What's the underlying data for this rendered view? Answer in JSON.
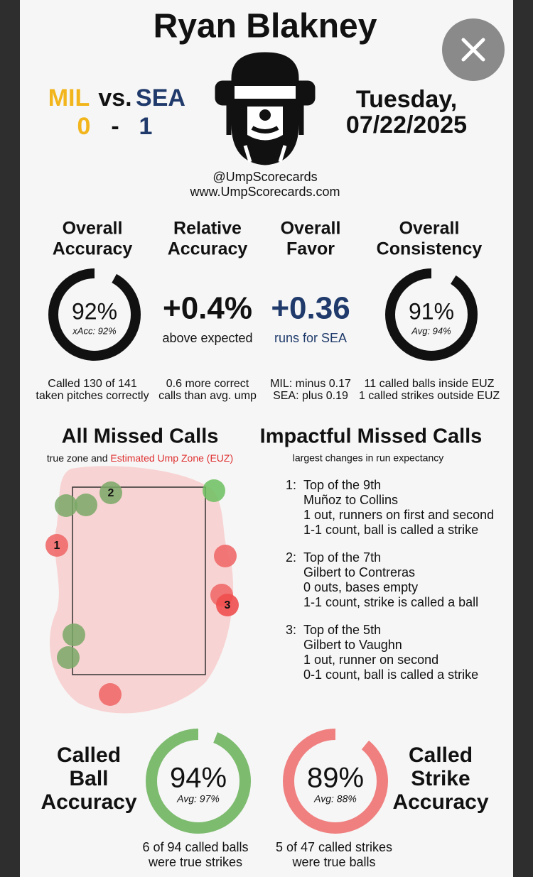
{
  "header": {
    "title": "Ryan Blakney",
    "away_team": "MIL",
    "vs": "vs.",
    "home_team": "SEA",
    "away_score": "0",
    "dash": "-",
    "home_score": "1",
    "date_line1": "Tuesday,",
    "date_line2": "07/22/2025",
    "handle": "@UmpScorecards",
    "website": "www.UmpScorecards.com"
  },
  "metrics": {
    "overall_accuracy": {
      "title_lines": [
        "Overall",
        "Accuracy"
      ],
      "value": 92,
      "value_label": "92%",
      "sub": "xAcc: 92%",
      "notes": [
        "Called 130 of 141",
        "taken pitches correctly"
      ]
    },
    "relative_accuracy": {
      "title_lines": [
        "Relative",
        "Accuracy"
      ],
      "value_label": "+0.4%",
      "sub": "above expected",
      "notes": [
        "0.6 more correct",
        "calls than avg. ump"
      ]
    },
    "overall_favor": {
      "title_lines": [
        "Overall",
        "Favor"
      ],
      "value_label": "+0.36",
      "sub": "runs for SEA",
      "notes": [
        "MIL: minus 0.17",
        "SEA: plus 0.19"
      ]
    },
    "overall_consistency": {
      "title_lines": [
        "Overall",
        "Consistency"
      ],
      "value": 91,
      "value_label": "91%",
      "sub": "Avg: 94%",
      "notes": [
        "11 called balls inside EUZ",
        "1 called strikes outside EUZ"
      ]
    }
  },
  "missed_calls": {
    "title": "All Missed Calls",
    "subtitle_a": "true zone and",
    "subtitle_b": "Estimated Ump Zone (EUZ)",
    "markers": [
      "1",
      "2",
      "3"
    ]
  },
  "impactful": {
    "title": "Impactful Missed Calls",
    "subtitle": "largest changes in run expectancy",
    "items": [
      {
        "num": "1:",
        "lines": [
          "Top of the 9th",
          "Muñoz to Collins",
          "1 out, runners on first and second",
          "1-1 count, ball is called a strike"
        ]
      },
      {
        "num": "2:",
        "lines": [
          "Top of the 7th",
          "Gilbert to Contreras",
          "0 outs, bases empty",
          "1-1 count, strike is called a ball"
        ]
      },
      {
        "num": "3:",
        "lines": [
          "Top of the 5th",
          "Gilbert to Vaughn",
          "1 out, runner on second",
          "0-1 count, ball is called a strike"
        ]
      }
    ]
  },
  "called_ball": {
    "title_lines": [
      "Called",
      "Ball",
      "Accuracy"
    ],
    "value": 94,
    "value_label": "94%",
    "sub": "Avg: 97%",
    "notes": [
      "6 of 94 called balls",
      "were true strikes"
    ]
  },
  "called_strike": {
    "title_lines": [
      "Called",
      "Strike",
      "Accuracy"
    ],
    "value": 89,
    "value_label": "89%",
    "sub": "Avg: 88%",
    "notes": [
      "5 of 47 called strikes",
      "were true balls"
    ]
  }
}
